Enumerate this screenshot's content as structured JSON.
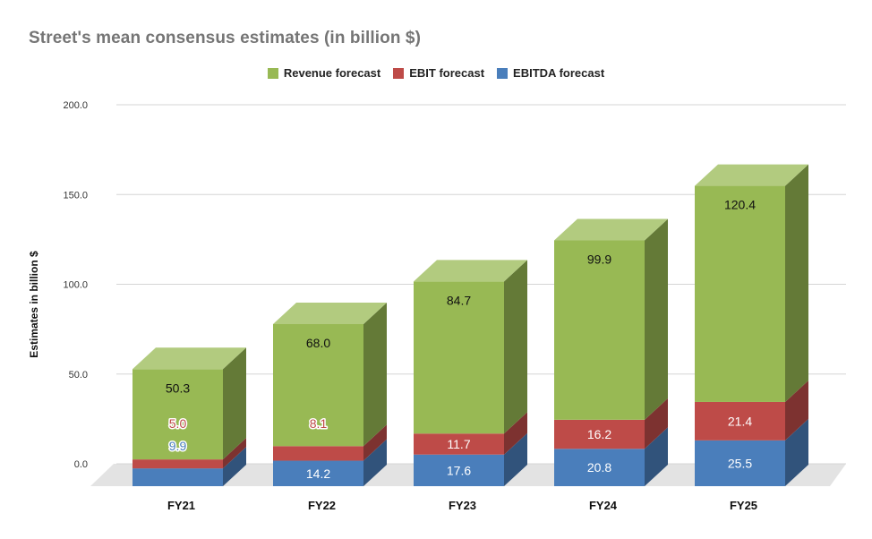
{
  "chart_data": {
    "type": "bar",
    "stacked": true,
    "three_d": true,
    "title": "Street's mean consensus estimates (in billion $)",
    "xlabel": "",
    "ylabel": "Estimates in billion $",
    "categories": [
      "FY21",
      "FY22",
      "FY23",
      "FY24",
      "FY25"
    ],
    "ylim": [
      0,
      200
    ],
    "yticks": [
      "0.0",
      "50.0",
      "100.0",
      "150.0",
      "200.0"
    ],
    "legend_position": "top-center",
    "series": [
      {
        "name": "EBITDA forecast",
        "color": "#4a7ebb",
        "values": [
          9.9,
          14.2,
          17.6,
          20.8,
          25.5
        ],
        "labels": [
          "9.9",
          "14.2",
          "17.6",
          "20.8",
          "25.5"
        ]
      },
      {
        "name": "EBIT forecast",
        "color": "#be4b48",
        "values": [
          5.0,
          8.1,
          11.7,
          16.2,
          21.4
        ],
        "labels": [
          "5.0",
          "8.1",
          "11.7",
          "16.2",
          "21.4"
        ]
      },
      {
        "name": "Revenue forecast",
        "color": "#98b954",
        "values": [
          50.3,
          68.0,
          84.7,
          99.9,
          120.4
        ],
        "labels": [
          "50.3",
          "68.0",
          "84.7",
          "99.9",
          "120.4"
        ]
      }
    ]
  }
}
